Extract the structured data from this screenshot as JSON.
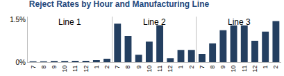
{
  "title": "Reject Rates by Hour and Manufacturing Line",
  "chart_data": [
    {
      "type": "bar",
      "title": "Line 1",
      "categories": [
        "7",
        "8",
        "9",
        "10",
        "11",
        "12",
        "1",
        "2"
      ],
      "values": [
        0.03,
        0.03,
        0.04,
        0.04,
        0.05,
        0.05,
        0.07,
        0.12
      ],
      "color": "#243f60",
      "ylim": [
        0,
        1.6
      ],
      "yticks": [
        {
          "value": 0,
          "label": "0%"
        },
        {
          "value": 1.5,
          "label": "1.5%"
        }
      ],
      "grid": false
    },
    {
      "type": "bar",
      "title": "Line 2",
      "categories": [
        "7",
        "8",
        "9",
        "10",
        "11",
        "12",
        "1",
        "2"
      ],
      "values": [
        1.35,
        0.92,
        0.26,
        0.72,
        1.3,
        0.14,
        0.43,
        0.43
      ],
      "color": "#243f60",
      "ylim": [
        0,
        1.6
      ],
      "yticks": [
        {
          "value": 0,
          "label": "0%"
        },
        {
          "value": 1.5,
          "label": "1.5%"
        }
      ],
      "grid": false,
      "tick_labels": "x"
    },
    {
      "type": "bar",
      "title": "Line 3",
      "categories": [
        "7",
        "8",
        "9",
        "10",
        "11",
        "12",
        "1",
        "2"
      ],
      "values": [
        0.29,
        0.66,
        1.12,
        1.29,
        1.29,
        0.75,
        1.07,
        1.44
      ],
      "color": "#243f60",
      "ylim": [
        0,
        1.6
      ],
      "yticks": [
        {
          "value": 0,
          "label": "0%"
        },
        {
          "value": 1.5,
          "label": "1.5%"
        }
      ],
      "grid": false,
      "tick_labels": "x"
    }
  ]
}
